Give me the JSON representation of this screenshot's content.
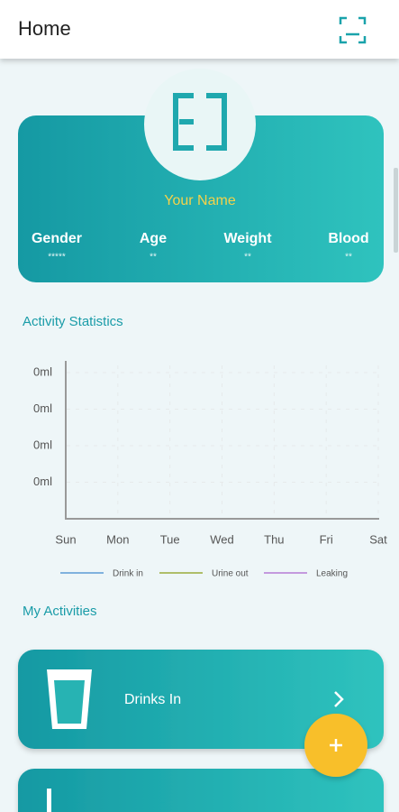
{
  "header": {
    "title": "Home"
  },
  "profile": {
    "name": "Your Name",
    "stats": [
      {
        "label": "Gender",
        "value": "*****"
      },
      {
        "label": "Age",
        "value": "**"
      },
      {
        "label": "Weight",
        "value": "**"
      },
      {
        "label": "Blood",
        "value": "**"
      }
    ]
  },
  "statistics": {
    "title": "Activity Statistics",
    "y_labels": [
      "0ml",
      "0ml",
      "0ml",
      "0ml"
    ],
    "days": [
      "Sun",
      "Mon",
      "Tue",
      "Wed",
      "Thu",
      "Fri",
      "Sat"
    ],
    "legend": [
      {
        "name": "Drink in",
        "color": "#5b9bd5"
      },
      {
        "name": "Urine out",
        "color": "#9aab3a"
      },
      {
        "name": "Leaking",
        "color": "#b57bd6"
      }
    ]
  },
  "activities": {
    "title": "My Activities",
    "items": [
      {
        "label": "Drinks In"
      }
    ]
  }
}
